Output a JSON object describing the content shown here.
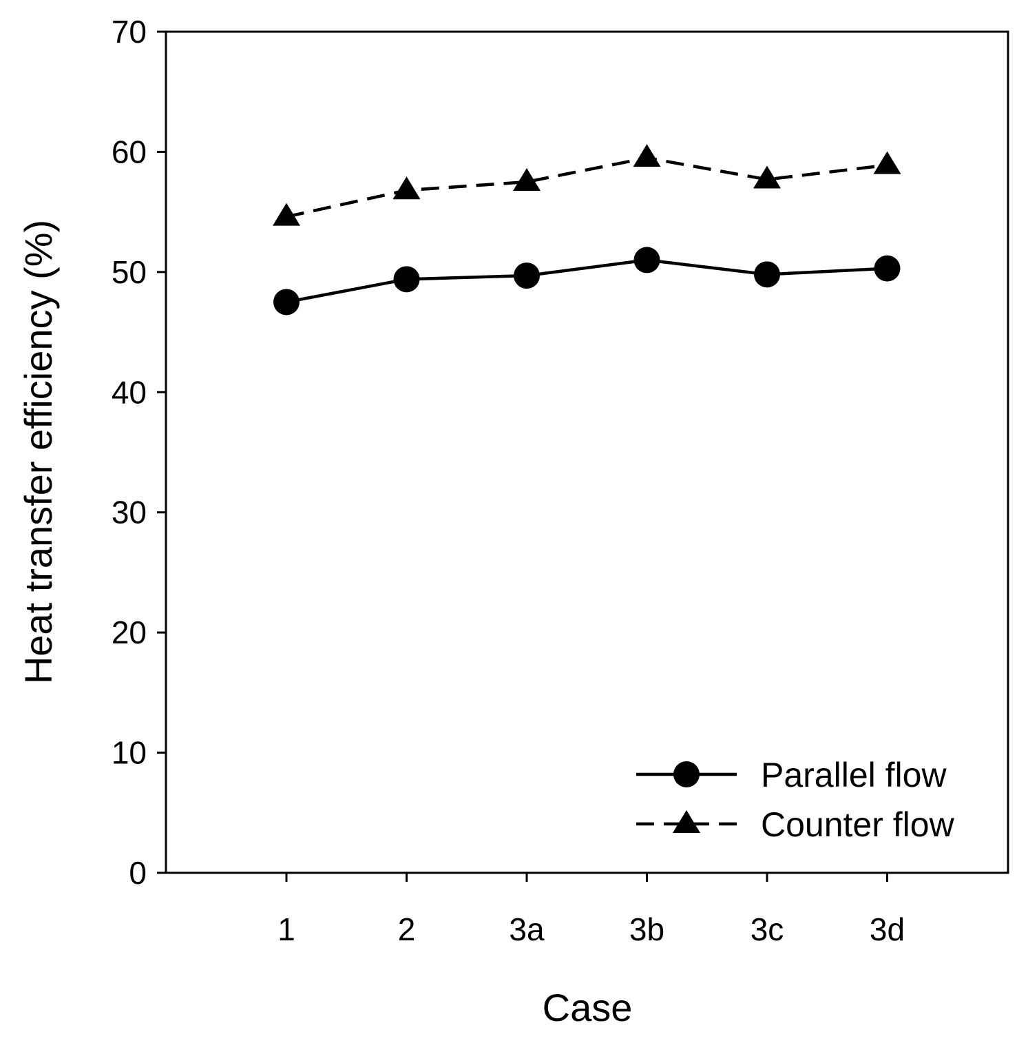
{
  "chart_data": {
    "type": "line",
    "title": "",
    "xlabel": "Case",
    "ylabel": "Heat transfer efficiency (%)",
    "categories": [
      "1",
      "2",
      "3a",
      "3b",
      "3c",
      "3d"
    ],
    "ylim": [
      0,
      70
    ],
    "yticks": [
      0,
      10,
      20,
      30,
      40,
      50,
      60,
      70
    ],
    "grid": false,
    "legend_position": "bottom-right",
    "series": [
      {
        "name": "Parallel flow",
        "marker": "circle",
        "line": "solid",
        "values": [
          47.5,
          49.4,
          49.7,
          51.0,
          49.8,
          50.3
        ]
      },
      {
        "name": "Counter flow",
        "marker": "triangle",
        "line": "dashed",
        "values": [
          54.6,
          56.8,
          57.5,
          59.5,
          57.7,
          58.9
        ]
      }
    ],
    "colors": {
      "series": "#000000",
      "axis": "#000000",
      "background": "#ffffff"
    }
  }
}
